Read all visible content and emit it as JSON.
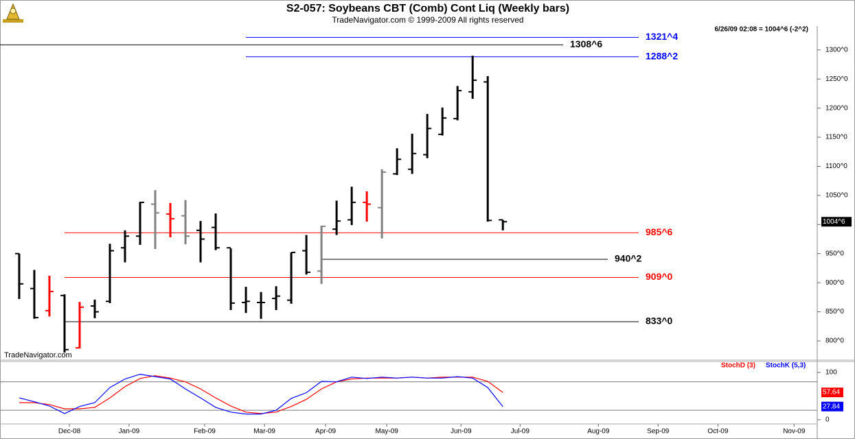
{
  "chart_data": [
    {
      "type": "ohlc",
      "title": "S2-057:  Soybeans CBT (Comb) Cont Liq  (Weekly bars)",
      "subtitle": "TradeNavigator.com © 1999-2009 All rights reserved",
      "info": "6/26/09 02:08 = 1004^6 (-2^2)",
      "watermark": "TradeNavigator.com",
      "open": [
        950,
        890,
        852,
        878,
        788,
        860,
        868,
        960,
        980,
        1035,
        1018,
        1015,
        990,
        995,
        960,
        866,
        866,
        873,
        870,
        955,
        920,
        992,
        1008,
        1038,
        1029,
        1087,
        1095,
        1120,
        1155,
        1182,
        1228,
        1245,
        1008
      ],
      "high": [
        950,
        922,
        912,
        880,
        867,
        871,
        967,
        990,
        1039,
        1059,
        1037,
        1042,
        1006,
        1019,
        959,
        893,
        884,
        894,
        952,
        982,
        998,
        1041,
        1065,
        1057,
        1095,
        1131,
        1156,
        1190,
        1201,
        1238,
        1290,
        1255,
        1008
      ],
      "low": [
        872,
        838,
        842,
        780,
        787,
        839,
        865,
        935,
        965,
        958,
        978,
        966,
        935,
        956,
        853,
        848,
        838,
        853,
        864,
        914,
        898,
        982,
        999,
        1005,
        976,
        1085,
        1087,
        1114,
        1153,
        1179,
        1216,
        1005,
        990
      ],
      "close": [
        898,
        840,
        885,
        785,
        858,
        850,
        955,
        980,
        1038,
        1020,
        1010,
        980,
        975,
        960,
        865,
        868,
        866,
        877,
        952,
        918,
        997,
        1006,
        1038,
        1035,
        1090,
        1112,
        1122,
        1165,
        1183,
        1230,
        1248,
        1007,
        1004.75
      ],
      "colors": [
        "#000000",
        "#000000",
        "#ff0000",
        "#000000",
        "#ff0000",
        "#000000",
        "#000000",
        "#000000",
        "#000000",
        "#808080",
        "#ff0000",
        "#808080",
        "#000000",
        "#000000",
        "#000000",
        "#000000",
        "#000000",
        "#000000",
        "#000000",
        "#000000",
        "#808080",
        "#000000",
        "#000000",
        "#ff0000",
        "#808080",
        "#000000",
        "#000000",
        "#000000",
        "#000000",
        "#000000",
        "#000000",
        "#000000",
        "#000000"
      ],
      "last_price": {
        "value": 1004.75,
        "label": "1004^6"
      },
      "ylim": [
        767,
        1341
      ],
      "yticks": [
        {
          "value": 800,
          "label": "800^0"
        },
        {
          "value": 850,
          "label": "850^0"
        },
        {
          "value": 900,
          "label": "900^0"
        },
        {
          "value": 950,
          "label": "950^0"
        },
        {
          "value": 1000,
          "label": "1000^0"
        },
        {
          "value": 1050,
          "label": "1050^0"
        },
        {
          "value": 1100,
          "label": "1100^0"
        },
        {
          "value": 1150,
          "label": "1150^0"
        },
        {
          "value": 1200,
          "label": "1200^0"
        },
        {
          "value": 1250,
          "label": "1250^0"
        },
        {
          "value": 1300,
          "label": "1300^0"
        }
      ],
      "levels": [
        {
          "value": 1321.5,
          "label": "1321^4",
          "color": "#0000ff"
        },
        {
          "value": 1308.75,
          "label": "1308^6",
          "color": "#000000"
        },
        {
          "value": 1288.25,
          "label": "1288^2",
          "color": "#0000ff"
        },
        {
          "value": 985.75,
          "label": "985^6",
          "color": "#ff0000"
        },
        {
          "value": 940.25,
          "label": "940^2",
          "color": "#000000"
        },
        {
          "value": 909,
          "label": "909^0",
          "color": "#ff0000"
        },
        {
          "value": 833,
          "label": "833^0",
          "color": "#000000"
        }
      ]
    },
    {
      "type": "line",
      "series": [
        {
          "name": "StochD (3)",
          "color": "#ff0000",
          "values": [
            36,
            36,
            32,
            23,
            23,
            26,
            46,
            70,
            87,
            93,
            88,
            80,
            65,
            46,
            29,
            16,
            13,
            16,
            28,
            43,
            65,
            80,
            86,
            88,
            88,
            88,
            90,
            88,
            90,
            90,
            90,
            81,
            57.64
          ]
        },
        {
          "name": "StochK (5,3)",
          "color": "#0000ff",
          "values": [
            46,
            38,
            29,
            13,
            28,
            36,
            68,
            86,
            96,
            91,
            86,
            65,
            46,
            26,
            16,
            12,
            12,
            20,
            45,
            57,
            81,
            80,
            90,
            87,
            90,
            88,
            90,
            88,
            88,
            91,
            88,
            68,
            27.84
          ]
        }
      ],
      "ylim": [
        -19,
        123
      ],
      "yticks": [
        0,
        100
      ],
      "levels": [
        80,
        20
      ],
      "xlim": [
        -1.27,
        52.8
      ],
      "xticks": [
        {
          "value": 3.32,
          "label": "Dec-08"
        },
        {
          "value": 7.27,
          "label": "Jan-09"
        },
        {
          "value": 12.27,
          "label": "Feb-09"
        },
        {
          "value": 16.23,
          "label": "Mar-09"
        },
        {
          "value": 20.27,
          "label": "Apr-09"
        },
        {
          "value": 24.32,
          "label": "May-09"
        },
        {
          "value": 29.23,
          "label": "Jun-09"
        },
        {
          "value": 33.14,
          "label": "Jul-09"
        },
        {
          "value": 38.32,
          "label": "Aug-09"
        },
        {
          "value": 42.27,
          "label": "Sep-09"
        },
        {
          "value": 46.23,
          "label": "Oct-09"
        },
        {
          "value": 51.27,
          "label": "Nov-09"
        }
      ]
    }
  ]
}
